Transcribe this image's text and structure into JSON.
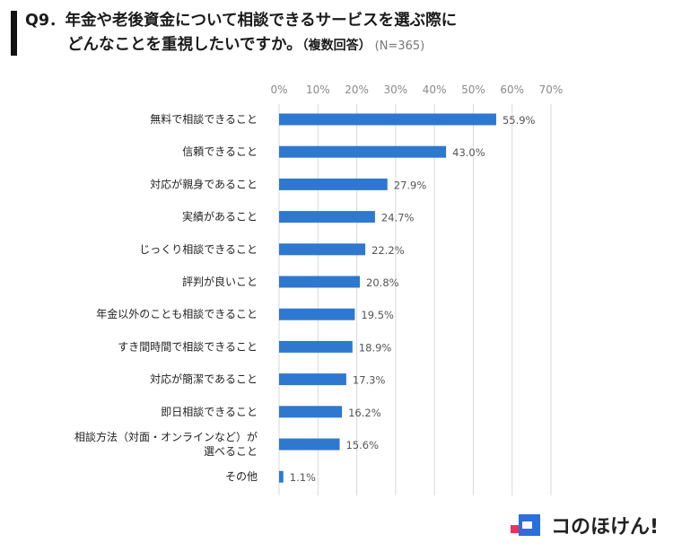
{
  "title": {
    "line1": "Q9．年金や老後資金について相談できるサービスを選ぶ際に",
    "line2": "どんなことを重視したいですか。",
    "sub": "（複数回答）",
    "n": "(N=365)"
  },
  "chart_data": {
    "type": "bar",
    "orientation": "horizontal",
    "title": "Q9．年金や老後資金について相談できるサービスを選ぶ際にどんなことを重視したいですか。（複数回答）(N=365)",
    "xlim": [
      0,
      70
    ],
    "ticks": [
      0,
      10,
      20,
      30,
      40,
      50,
      60,
      70
    ],
    "tick_suffix": "%",
    "value_suffix": "%",
    "bar_color": "#2f78cf",
    "categories": [
      [
        "無料で相談できること"
      ],
      [
        "信頼できること"
      ],
      [
        "対応が親身であること"
      ],
      [
        "実績があること"
      ],
      [
        "じっくり相談できること"
      ],
      [
        "評判が良いこと"
      ],
      [
        "年金以外のことも相談できること"
      ],
      [
        "すき間時間で相談できること"
      ],
      [
        "対応が簡潔であること"
      ],
      [
        "即日相談できること"
      ],
      [
        "相談方法（対面・オンラインなど）が",
        "選べること"
      ],
      [
        "その他"
      ]
    ],
    "values": [
      55.9,
      43.0,
      27.9,
      24.7,
      22.2,
      20.8,
      19.5,
      18.9,
      17.3,
      16.2,
      15.6,
      1.1
    ]
  },
  "logo": {
    "text": "コのほけん!",
    "colors": {
      "blue": "#2a6fdb",
      "red": "#e8335b"
    }
  }
}
